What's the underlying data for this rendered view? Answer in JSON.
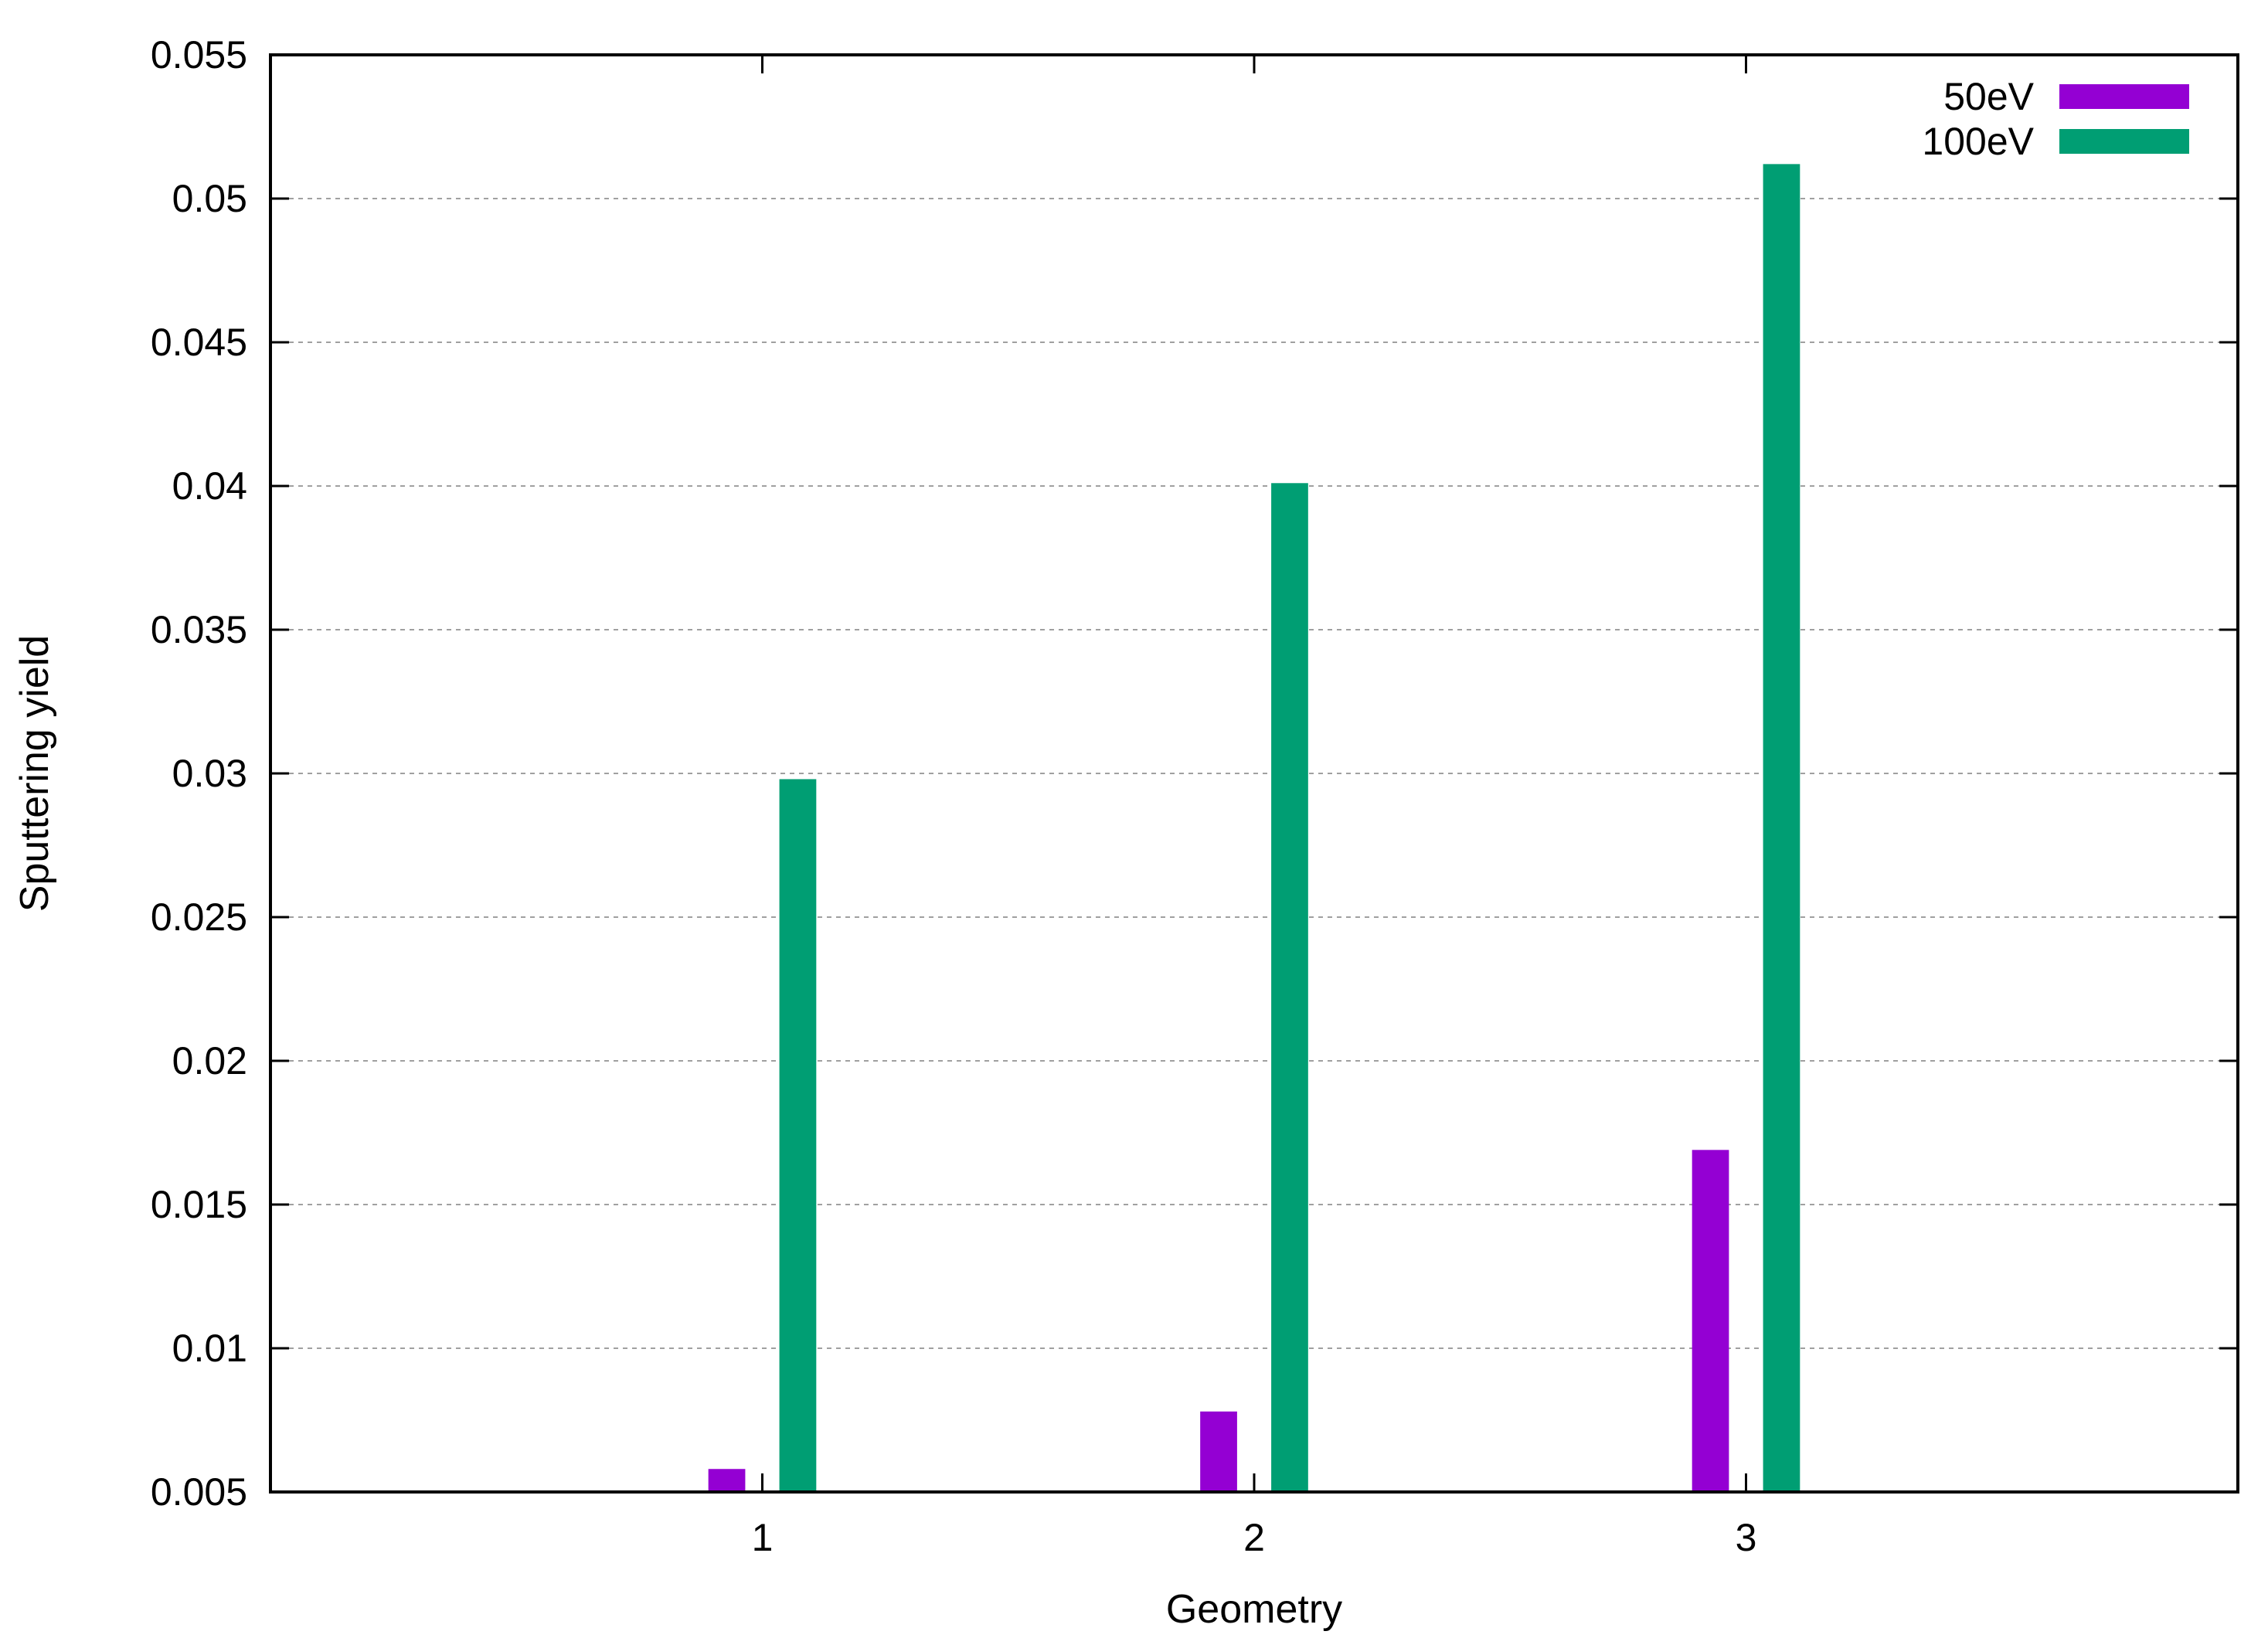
{
  "chart_data": {
    "type": "bar",
    "title": "",
    "xlabel": "Geometry",
    "ylabel": "Sputtering yield",
    "categories": [
      "1",
      "2",
      "3"
    ],
    "series": [
      {
        "name": "50eV",
        "values": [
          0.0058,
          0.0078,
          0.0169
        ],
        "color": "#9400d3"
      },
      {
        "name": "100eV",
        "values": [
          0.0298,
          0.0401,
          0.0512
        ],
        "color": "#009e73"
      }
    ],
    "ylim": [
      0.005,
      0.055
    ],
    "yticks": [
      "0.005",
      "0.01",
      "0.015",
      "0.02",
      "0.025",
      "0.03",
      "0.035",
      "0.04",
      "0.045",
      "0.05",
      "0.055"
    ],
    "xlim": [
      0,
      4
    ],
    "grid": "horizontal dashed",
    "legend": "top-right"
  }
}
